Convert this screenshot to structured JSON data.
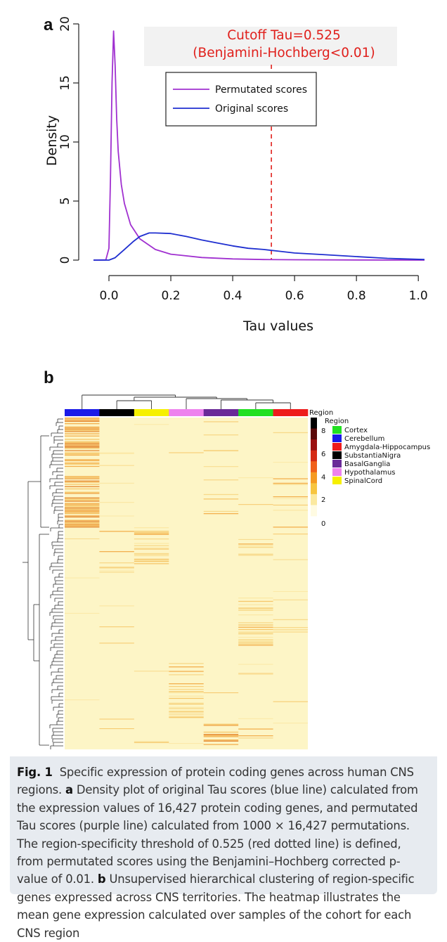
{
  "panel_a": {
    "label": "a",
    "annotation_line1": "Cutoff Tau=0.525",
    "annotation_line2": "(Benjamini-Hochberg<0.01)",
    "colors": {
      "permutated": "#a030d0",
      "original": "#1f2fd0",
      "cutoff": "#e0201c"
    }
  },
  "panel_b": {
    "label": "b",
    "region_bar_title": "Region",
    "legend_title": "Region",
    "legend": [
      {
        "name": "Cortex",
        "color": "#22e022"
      },
      {
        "name": "Cerebellum",
        "color": "#1a1ae8"
      },
      {
        "name": "Amygdala-Hippocampus",
        "color": "#ee1c1c"
      },
      {
        "name": "SubstantiaNigra",
        "color": "#000000"
      },
      {
        "name": "BasalGanglia",
        "color": "#6a2a98"
      },
      {
        "name": "Hypothalamus",
        "color": "#ee82ee"
      },
      {
        "name": "SpinalCord",
        "color": "#f6f000"
      }
    ],
    "column_order": [
      "Cerebellum",
      "SubstantiaNigra",
      "SpinalCord",
      "Hypothalamus",
      "BasalGanglia",
      "Cortex",
      "Amygdala-Hippocampus"
    ],
    "colorscale_ticks": [
      "8",
      "6",
      "4",
      "2",
      "0"
    ],
    "colorscale_colors": [
      "#000000",
      "#5a0808",
      "#9a1010",
      "#d42a14",
      "#f0601a",
      "#f59a22",
      "#f7c540",
      "#fbe9a0",
      "#fffbe2"
    ]
  },
  "chart_data": [
    {
      "type": "line",
      "panel": "a",
      "xlabel": "Tau values",
      "ylabel": "Density",
      "xlim": [
        -0.05,
        1.02
      ],
      "ylim": [
        0,
        20
      ],
      "xticks": [
        "0.0",
        "0.2",
        "0.4",
        "0.6",
        "0.8",
        "1.0"
      ],
      "yticks": [
        "0",
        "5",
        "10",
        "15",
        "20"
      ],
      "legend_placement": "top-center",
      "series": [
        {
          "name": "Permutated scores",
          "color": "#a030d0",
          "x": [
            -0.05,
            -0.01,
            0.0,
            0.005,
            0.01,
            0.015,
            0.02,
            0.025,
            0.03,
            0.04,
            0.05,
            0.07,
            0.1,
            0.15,
            0.2,
            0.3,
            0.4,
            0.5,
            0.6,
            0.8,
            1.02
          ],
          "y": [
            0,
            0.02,
            1.0,
            7.0,
            15.0,
            19.4,
            16.5,
            12.0,
            9.2,
            6.4,
            4.8,
            3.0,
            1.8,
            0.9,
            0.5,
            0.22,
            0.1,
            0.05,
            0.03,
            0.01,
            0.0
          ]
        },
        {
          "name": "Original scores",
          "color": "#1f2fd0",
          "x": [
            -0.05,
            0.0,
            0.02,
            0.05,
            0.08,
            0.1,
            0.13,
            0.15,
            0.2,
            0.25,
            0.3,
            0.35,
            0.4,
            0.45,
            0.5,
            0.55,
            0.6,
            0.7,
            0.8,
            0.9,
            1.02
          ],
          "y": [
            0,
            0.0,
            0.2,
            0.9,
            1.6,
            2.0,
            2.3,
            2.3,
            2.25,
            2.0,
            1.7,
            1.45,
            1.2,
            1.0,
            0.9,
            0.75,
            0.6,
            0.45,
            0.3,
            0.15,
            0.05
          ]
        }
      ],
      "annotations": [
        {
          "text": "Cutoff Tau=0.525 (Benjamini-Hochberg<0.01)",
          "x": 0.525,
          "line": "vertical dashed"
        }
      ]
    },
    {
      "type": "heatmap",
      "panel": "b",
      "columns": [
        "Cerebellum",
        "SubstantiaNigra",
        "SpinalCord",
        "Hypothalamus",
        "BasalGanglia",
        "Cortex",
        "Amygdala-Hippocampus"
      ],
      "colorscale_range": [
        0,
        9
      ],
      "column_dendrogram": true,
      "row_dendrogram": true
    }
  ],
  "caption": {
    "fig_label": "Fig. 1",
    "title": "Specific expression of protein coding genes across human CNS regions.",
    "a_label": "a",
    "a_text": "Density plot of original Tau scores (blue line) calculated from the expression values of 16,427 protein coding genes, and permutated Tau scores (purple line) calculated from 1000 × 16,427 permutations. The region-specificity threshold of 0.525 (red dotted line) is defined, from permutated scores using the Benjamini–Hochberg corrected p-value of 0.01.",
    "b_label": "b",
    "b_text": "Unsupervised hierarchical clustering of region-specific genes expressed across CNS territories. The heatmap illustrates the mean gene expression calculated over samples of the cohort for each CNS region"
  }
}
